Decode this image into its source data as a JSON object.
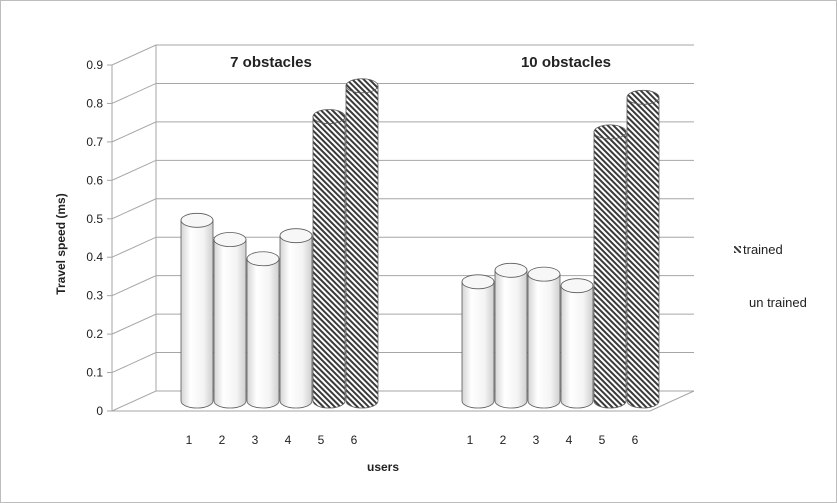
{
  "chart_data": {
    "type": "bar",
    "style": "3d-cylinder",
    "ylabel": "Travel speed (ms)",
    "xlabel": "users",
    "ylim": [
      0,
      0.9
    ],
    "yticks": [
      "0",
      "0.1",
      "0.2",
      "0.3",
      "0.4",
      "0.5",
      "0.6",
      "0.7",
      "0.8",
      "0.9"
    ],
    "grid": true,
    "legend_position": "right",
    "legend": [
      {
        "label": "trained",
        "pattern": "hatched"
      },
      {
        "label": "un trained",
        "pattern": "plain"
      }
    ],
    "groups": [
      {
        "title": "7 obstacles",
        "users": [
          "1",
          "2",
          "3",
          "4",
          "5",
          "6"
        ],
        "values": [
          0.47,
          0.42,
          0.37,
          0.43,
          0.74,
          0.82
        ],
        "trained": [
          false,
          false,
          false,
          false,
          true,
          true
        ]
      },
      {
        "title": "10 obstacles",
        "users": [
          "1",
          "2",
          "3",
          "4",
          "5",
          "6"
        ],
        "values": [
          0.31,
          0.34,
          0.33,
          0.3,
          0.7,
          0.79
        ],
        "trained": [
          false,
          false,
          false,
          false,
          true,
          true
        ]
      }
    ],
    "colors": {
      "grid": "#a6a6a6",
      "bar_edge": "#5a5a5a",
      "hatch": "#3a3a3a"
    }
  }
}
